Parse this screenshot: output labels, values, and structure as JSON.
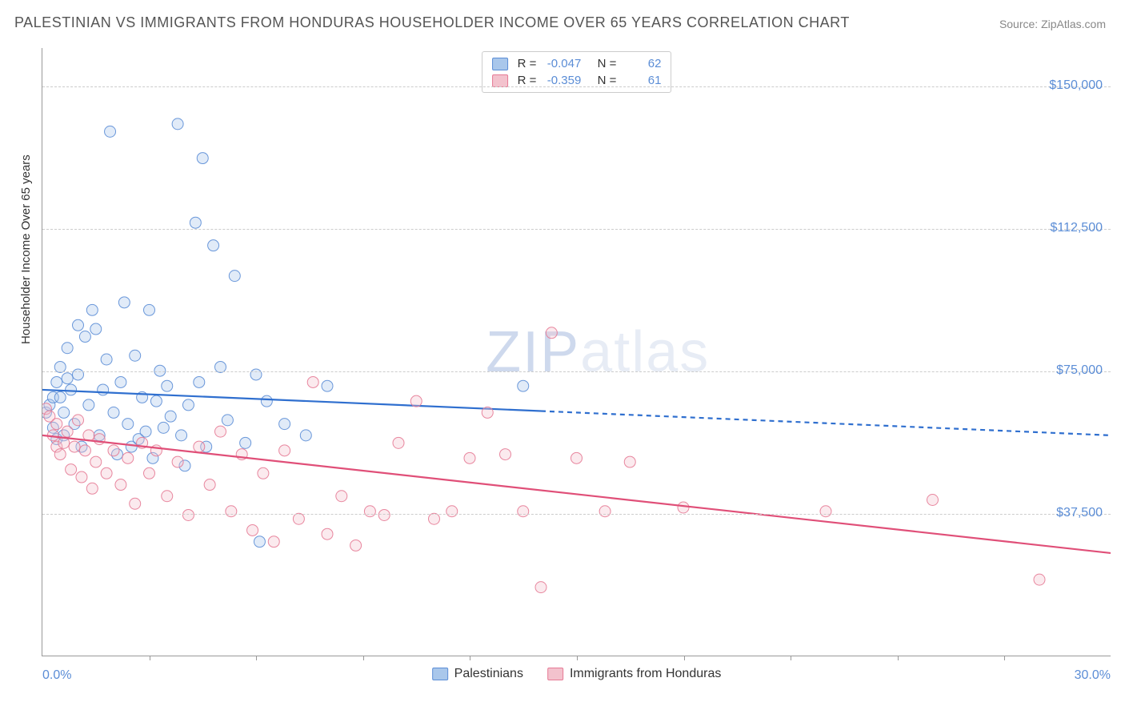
{
  "title": "PALESTINIAN VS IMMIGRANTS FROM HONDURAS HOUSEHOLDER INCOME OVER 65 YEARS CORRELATION CHART",
  "source": "Source: ZipAtlas.com",
  "ylabel": "Householder Income Over 65 years",
  "watermark": {
    "prefix": "ZIP",
    "suffix": "atlas"
  },
  "chart": {
    "type": "scatter",
    "background_color": "#ffffff",
    "grid_color": "#cccccc",
    "axis_color": "#999999",
    "tick_label_color": "#5b8dd6",
    "xlim": [
      0,
      30
    ],
    "ylim": [
      0,
      160000
    ],
    "x_unit": "%",
    "y_unit": "$",
    "xticks_minor": [
      3,
      6,
      9,
      12,
      15,
      18,
      21,
      24,
      27
    ],
    "yticks": [
      {
        "value": 37500,
        "label": "$37,500"
      },
      {
        "value": 75000,
        "label": "$75,000"
      },
      {
        "value": 112500,
        "label": "$112,500"
      },
      {
        "value": 150000,
        "label": "$150,000"
      }
    ],
    "xaxis_labels": {
      "min": "0.0%",
      "max": "30.0%"
    },
    "marker_radius": 7,
    "marker_fill_opacity": 0.35,
    "marker_stroke_opacity": 0.9,
    "line_width": 2.2,
    "label_fontsize": 15,
    "tick_fontsize": 16
  },
  "series": [
    {
      "name": "Palestinians",
      "color_fill": "#a9c7eb",
      "color_stroke": "#5b8dd6",
      "line_color": "#2f6fcf",
      "r": -0.047,
      "n": 62,
      "trend": {
        "y_at_xmin": 70000,
        "y_at_xmax": 58000,
        "solid_until_x": 14
      },
      "points": [
        [
          0.1,
          64000
        ],
        [
          0.2,
          66000
        ],
        [
          0.3,
          68000
        ],
        [
          0.3,
          60000
        ],
        [
          0.4,
          72000
        ],
        [
          0.4,
          57000
        ],
        [
          0.5,
          76000
        ],
        [
          0.5,
          68000
        ],
        [
          0.6,
          64000
        ],
        [
          0.6,
          58000
        ],
        [
          0.7,
          73000
        ],
        [
          0.7,
          81000
        ],
        [
          0.8,
          70000
        ],
        [
          0.9,
          61000
        ],
        [
          1.0,
          74000
        ],
        [
          1.0,
          87000
        ],
        [
          1.1,
          55000
        ],
        [
          1.2,
          84000
        ],
        [
          1.3,
          66000
        ],
        [
          1.4,
          91000
        ],
        [
          1.5,
          86000
        ],
        [
          1.6,
          58000
        ],
        [
          1.7,
          70000
        ],
        [
          1.8,
          78000
        ],
        [
          1.9,
          138000
        ],
        [
          2.0,
          64000
        ],
        [
          2.1,
          53000
        ],
        [
          2.2,
          72000
        ],
        [
          2.3,
          93000
        ],
        [
          2.4,
          61000
        ],
        [
          2.5,
          55000
        ],
        [
          2.6,
          79000
        ],
        [
          2.7,
          57000
        ],
        [
          2.8,
          68000
        ],
        [
          2.9,
          59000
        ],
        [
          3.0,
          91000
        ],
        [
          3.1,
          52000
        ],
        [
          3.2,
          67000
        ],
        [
          3.3,
          75000
        ],
        [
          3.4,
          60000
        ],
        [
          3.5,
          71000
        ],
        [
          3.6,
          63000
        ],
        [
          3.8,
          140000
        ],
        [
          3.9,
          58000
        ],
        [
          4.0,
          50000
        ],
        [
          4.1,
          66000
        ],
        [
          4.3,
          114000
        ],
        [
          4.4,
          72000
        ],
        [
          4.5,
          131000
        ],
        [
          4.6,
          55000
        ],
        [
          4.8,
          108000
        ],
        [
          5.0,
          76000
        ],
        [
          5.2,
          62000
        ],
        [
          5.4,
          100000
        ],
        [
          5.7,
          56000
        ],
        [
          6.0,
          74000
        ],
        [
          6.1,
          30000
        ],
        [
          6.3,
          67000
        ],
        [
          6.8,
          61000
        ],
        [
          7.4,
          58000
        ],
        [
          8.0,
          71000
        ],
        [
          13.5,
          71000
        ]
      ]
    },
    {
      "name": "Immigrants from Honduras",
      "color_fill": "#f3c2cd",
      "color_stroke": "#e67a95",
      "line_color": "#e04f78",
      "r": -0.359,
      "n": 61,
      "trend": {
        "y_at_xmin": 58000,
        "y_at_xmax": 27000,
        "solid_until_x": 30
      },
      "points": [
        [
          0.1,
          65000
        ],
        [
          0.2,
          63000
        ],
        [
          0.3,
          58000
        ],
        [
          0.4,
          55000
        ],
        [
          0.4,
          61000
        ],
        [
          0.5,
          53000
        ],
        [
          0.6,
          56000
        ],
        [
          0.7,
          59000
        ],
        [
          0.8,
          49000
        ],
        [
          0.9,
          55000
        ],
        [
          1.0,
          62000
        ],
        [
          1.1,
          47000
        ],
        [
          1.2,
          54000
        ],
        [
          1.3,
          58000
        ],
        [
          1.4,
          44000
        ],
        [
          1.5,
          51000
        ],
        [
          1.6,
          57000
        ],
        [
          1.8,
          48000
        ],
        [
          2.0,
          54000
        ],
        [
          2.2,
          45000
        ],
        [
          2.4,
          52000
        ],
        [
          2.6,
          40000
        ],
        [
          2.8,
          56000
        ],
        [
          3.0,
          48000
        ],
        [
          3.2,
          54000
        ],
        [
          3.5,
          42000
        ],
        [
          3.8,
          51000
        ],
        [
          4.1,
          37000
        ],
        [
          4.4,
          55000
        ],
        [
          4.7,
          45000
        ],
        [
          5.0,
          59000
        ],
        [
          5.3,
          38000
        ],
        [
          5.6,
          53000
        ],
        [
          5.9,
          33000
        ],
        [
          6.2,
          48000
        ],
        [
          6.5,
          30000
        ],
        [
          6.8,
          54000
        ],
        [
          7.2,
          36000
        ],
        [
          7.6,
          72000
        ],
        [
          8.0,
          32000
        ],
        [
          8.4,
          42000
        ],
        [
          8.8,
          29000
        ],
        [
          9.2,
          38000
        ],
        [
          9.6,
          37000
        ],
        [
          10.0,
          56000
        ],
        [
          10.5,
          67000
        ],
        [
          11.0,
          36000
        ],
        [
          11.5,
          38000
        ],
        [
          12.0,
          52000
        ],
        [
          12.5,
          64000
        ],
        [
          13.0,
          53000
        ],
        [
          13.5,
          38000
        ],
        [
          14.0,
          18000
        ],
        [
          14.3,
          85000
        ],
        [
          15.0,
          52000
        ],
        [
          15.8,
          38000
        ],
        [
          16.5,
          51000
        ],
        [
          18.0,
          39000
        ],
        [
          22.0,
          38000
        ],
        [
          25.0,
          41000
        ],
        [
          28.0,
          20000
        ]
      ]
    }
  ]
}
